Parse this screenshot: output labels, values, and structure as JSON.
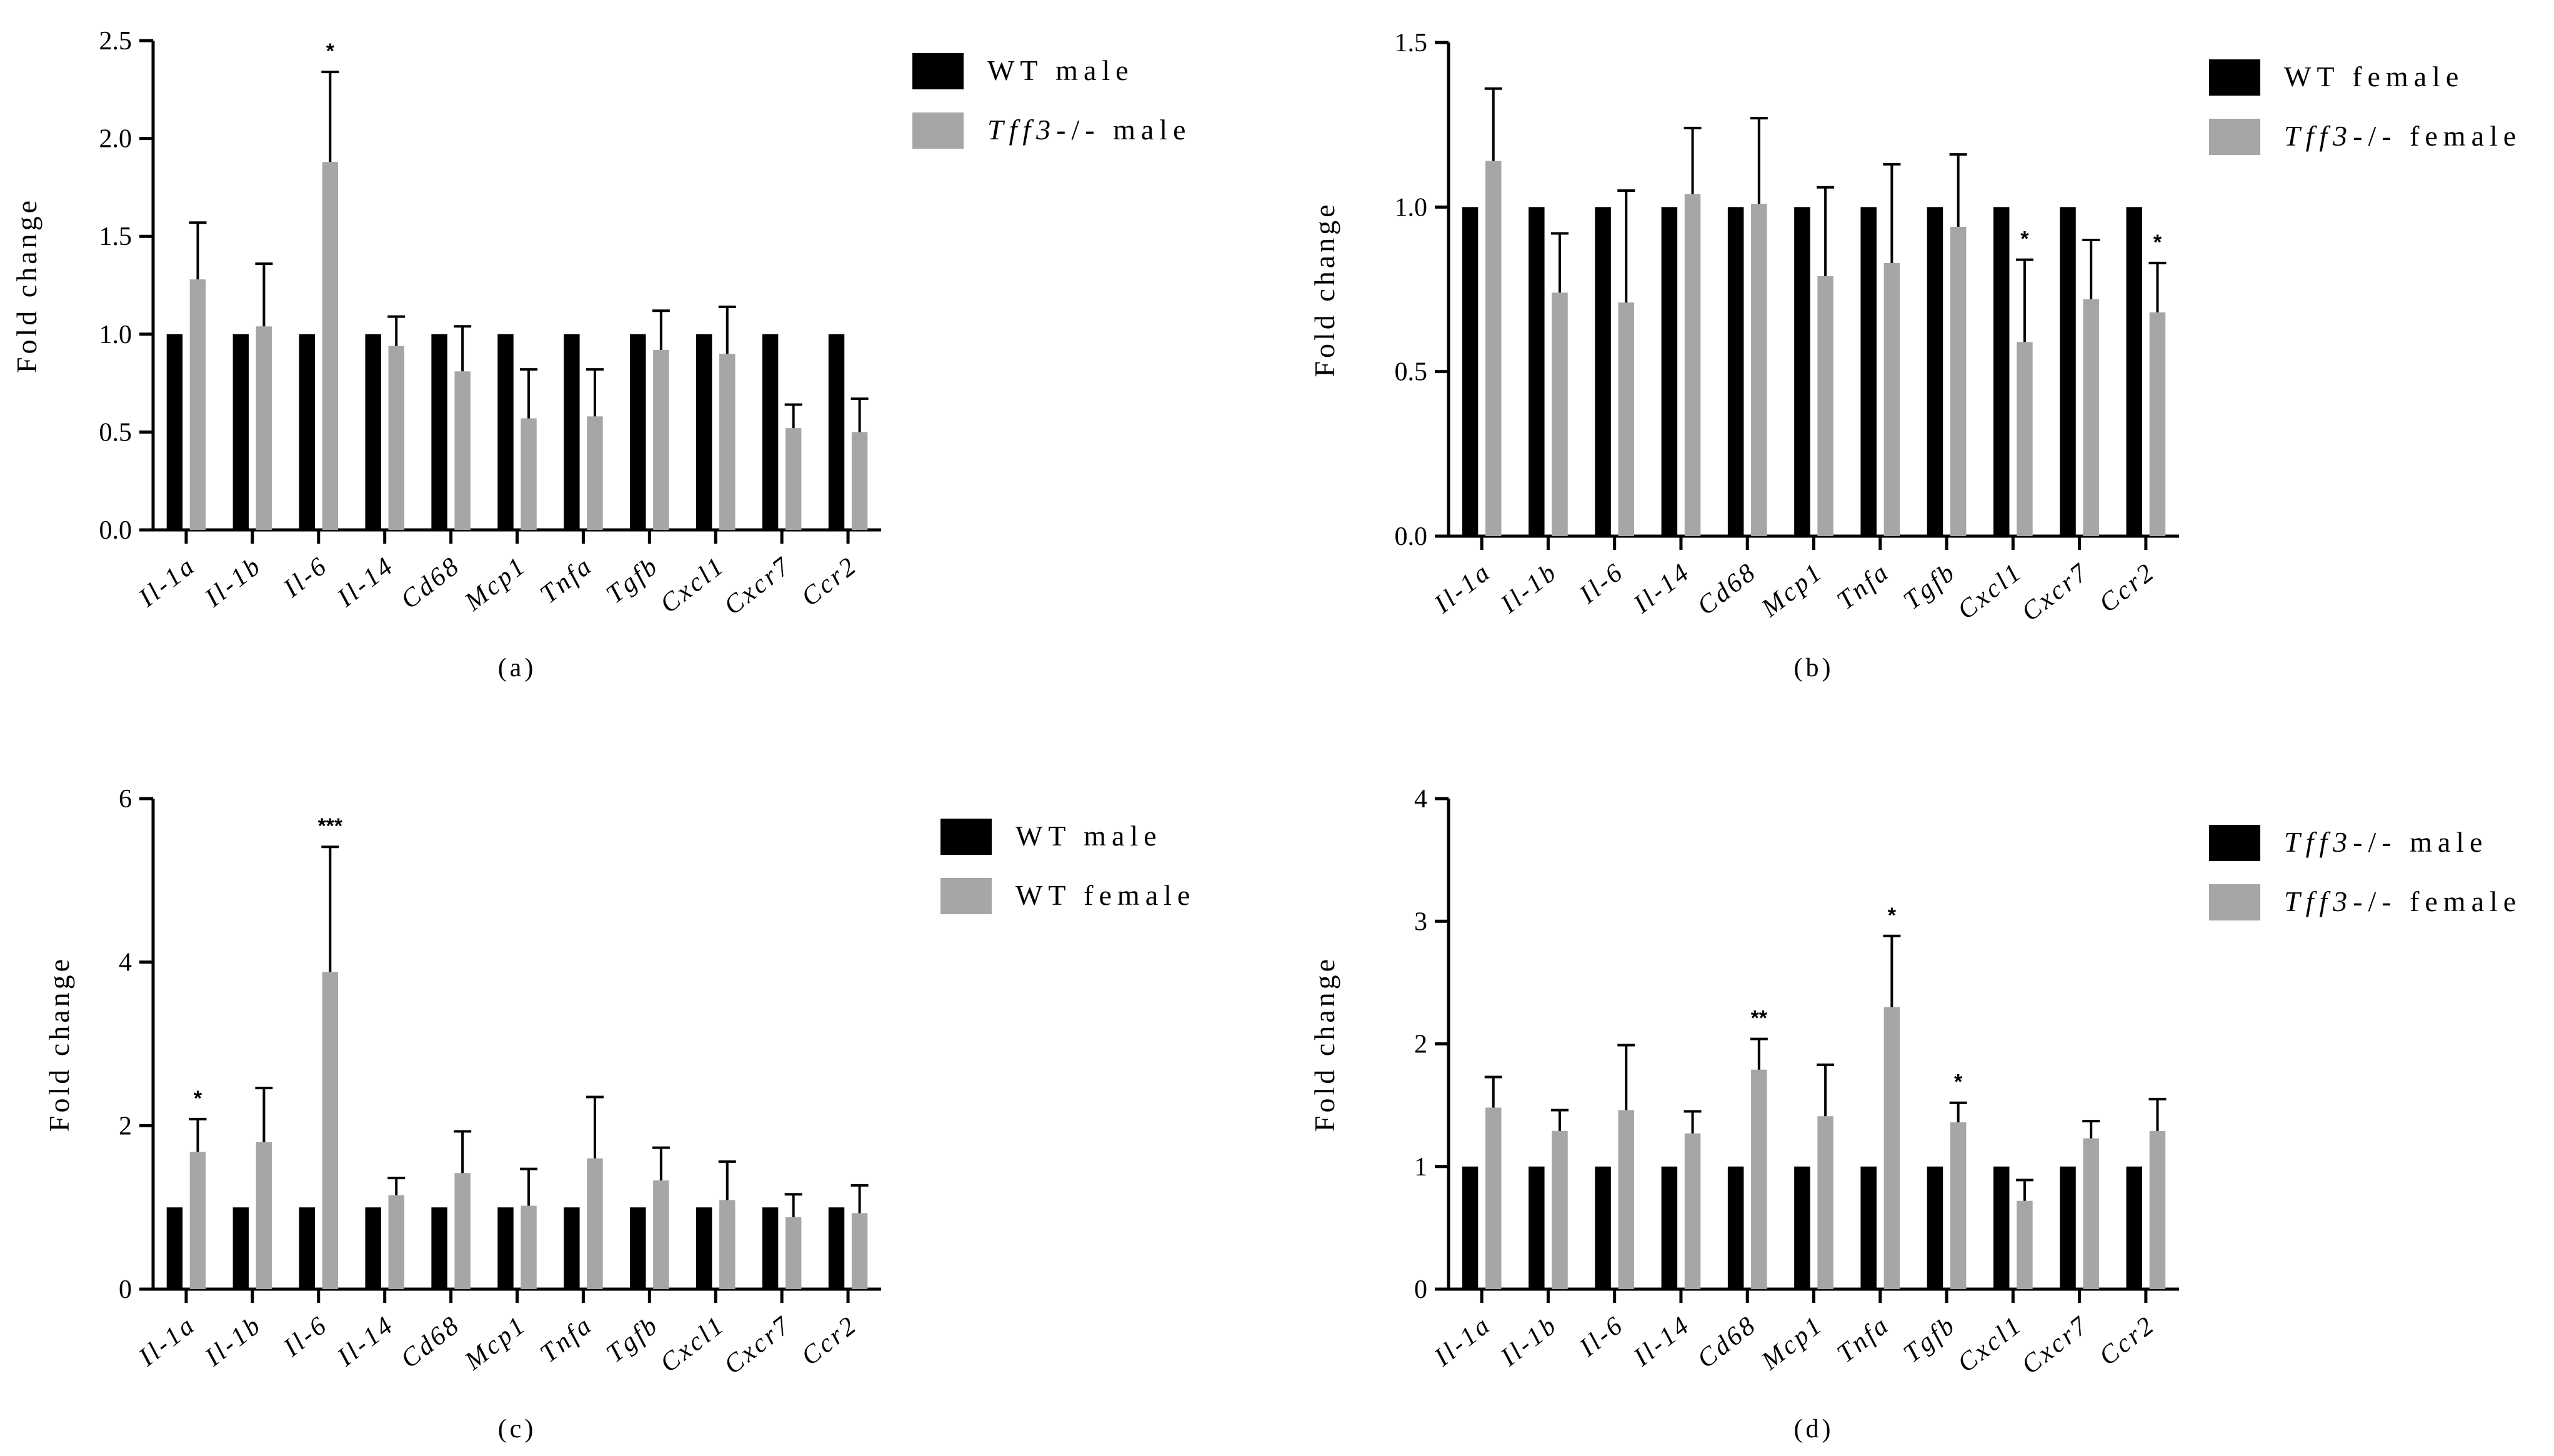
{
  "figure_colors": {
    "series_dark": "#000000",
    "series_light": "#a6a6a6",
    "axis": "#000000",
    "background": "#ffffff"
  },
  "chart_data": [
    {
      "panel": "a",
      "type": "bar",
      "panel_label": "(a)",
      "ylabel": "Fold change",
      "xlabel": "",
      "ylim": [
        0,
        2.5
      ],
      "yticks": [
        0,
        0.5,
        1.0,
        1.5,
        2.0,
        2.5
      ],
      "ytick_labels": [
        "0.0",
        "0.5",
        "1.0",
        "1.5",
        "2.0",
        "2.5"
      ],
      "categories": [
        "Il-1a",
        "Il-1b",
        "Il-6",
        "Il-14",
        "Cd68",
        "Mcp1",
        "Tnfa",
        "Tgfb",
        "Cxcl1",
        "Cxcr7",
        "Ccr2"
      ],
      "series": [
        {
          "name": "WT male",
          "legend": [
            {
              "t": "WT male",
              "i": false
            }
          ],
          "color": "#000000",
          "values": [
            1,
            1,
            1,
            1,
            1,
            1,
            1,
            1,
            1,
            1,
            1
          ],
          "errors": [
            0,
            0,
            0,
            0,
            0,
            0,
            0,
            0,
            0,
            0,
            0
          ]
        },
        {
          "name": "Tff3-/- male",
          "legend": [
            {
              "t": "Tff3",
              "i": true
            },
            {
              "t": "-/- male",
              "i": false
            }
          ],
          "color": "#a6a6a6",
          "values": [
            1.28,
            1.04,
            1.88,
            0.94,
            0.81,
            0.57,
            0.58,
            0.92,
            0.9,
            0.52,
            0.5
          ],
          "errors": [
            0.29,
            0.32,
            0.46,
            0.15,
            0.23,
            0.25,
            0.24,
            0.2,
            0.24,
            0.12,
            0.17
          ]
        }
      ],
      "significance": [
        {
          "category": "Il-6",
          "series": 1,
          "label": "*"
        }
      ],
      "legend_position": "top-right, outside plot"
    },
    {
      "panel": "b",
      "type": "bar",
      "panel_label": "(b)",
      "ylabel": "Fold change",
      "xlabel": "",
      "ylim": [
        0,
        1.5
      ],
      "yticks": [
        0,
        0.5,
        1.0,
        1.5
      ],
      "ytick_labels": [
        "0.0",
        "0.5",
        "1.0",
        "1.5"
      ],
      "categories": [
        "Il-1a",
        "Il-1b",
        "Il-6",
        "Il-14",
        "Cd68",
        "Mcp1",
        "Tnfa",
        "Tgfb",
        "Cxcl1",
        "Cxcr7",
        "Ccr2"
      ],
      "series": [
        {
          "name": "WT female",
          "legend": [
            {
              "t": "WT female",
              "i": false
            }
          ],
          "color": "#000000",
          "values": [
            1,
            1,
            1,
            1,
            1,
            1,
            1,
            1,
            1,
            1,
            1
          ],
          "errors": [
            0,
            0,
            0,
            0,
            0,
            0,
            0,
            0,
            0,
            0,
            0
          ]
        },
        {
          "name": "Tff3-/- female",
          "legend": [
            {
              "t": "Tff3",
              "i": true
            },
            {
              "t": "-/- female",
              "i": false
            }
          ],
          "color": "#a6a6a6",
          "values": [
            1.14,
            0.74,
            0.71,
            1.04,
            1.01,
            0.79,
            0.83,
            0.94,
            0.59,
            0.72,
            0.68
          ],
          "errors": [
            0.22,
            0.18,
            0.34,
            0.2,
            0.26,
            0.27,
            0.3,
            0.22,
            0.25,
            0.18,
            0.15
          ]
        }
      ],
      "significance": [
        {
          "category": "Cxcl1",
          "series": 1,
          "label": "*"
        },
        {
          "category": "Ccr2",
          "series": 1,
          "label": "*"
        }
      ],
      "legend_position": "top-right, outside plot"
    },
    {
      "panel": "c",
      "type": "bar",
      "panel_label": "(c)",
      "ylabel": "Fold change",
      "xlabel": "",
      "ylim": [
        0,
        6
      ],
      "yticks": [
        0,
        2,
        4,
        6
      ],
      "ytick_labels": [
        "0",
        "2",
        "4",
        "6"
      ],
      "categories": [
        "Il-1a",
        "Il-1b",
        "Il-6",
        "Il-14",
        "Cd68",
        "Mcp1",
        "Tnfa",
        "Tgfb",
        "Cxcl1",
        "Cxcr7",
        "Ccr2"
      ],
      "series": [
        {
          "name": "WT male",
          "legend": [
            {
              "t": "WT male",
              "i": false
            }
          ],
          "color": "#000000",
          "values": [
            1,
            1,
            1,
            1,
            1,
            1,
            1,
            1,
            1,
            1,
            1
          ],
          "errors": [
            0,
            0,
            0,
            0,
            0,
            0,
            0,
            0,
            0,
            0,
            0
          ]
        },
        {
          "name": "WT female",
          "legend": [
            {
              "t": "WT female",
              "i": false
            }
          ],
          "color": "#a6a6a6",
          "values": [
            1.68,
            1.8,
            3.88,
            1.15,
            1.42,
            1.02,
            1.6,
            1.33,
            1.09,
            0.88,
            0.93
          ],
          "errors": [
            0.4,
            0.66,
            1.53,
            0.21,
            0.51,
            0.45,
            0.75,
            0.4,
            0.47,
            0.28,
            0.34
          ]
        }
      ],
      "significance": [
        {
          "category": "Il-1a",
          "series": 1,
          "label": "*"
        },
        {
          "category": "Il-6",
          "series": 1,
          "label": "***"
        }
      ],
      "legend_position": "top-right, outside plot"
    },
    {
      "panel": "d",
      "type": "bar",
      "panel_label": "(d)",
      "ylabel": "Fold change",
      "xlabel": "",
      "ylim": [
        0,
        4
      ],
      "yticks": [
        0,
        1,
        2,
        3,
        4
      ],
      "ytick_labels": [
        "0",
        "1",
        "2",
        "3",
        "4"
      ],
      "categories": [
        "Il-1a",
        "Il-1b",
        "Il-6",
        "Il-14",
        "Cd68",
        "Mcp1",
        "Tnfa",
        "Tgfb",
        "Cxcl1",
        "Cxcr7",
        "Ccr2"
      ],
      "series": [
        {
          "name": "Tff3-/- male",
          "legend": [
            {
              "t": "Tff3",
              "i": true
            },
            {
              "t": "-/- male",
              "i": false
            }
          ],
          "color": "#000000",
          "values": [
            1,
            1,
            1,
            1,
            1,
            1,
            1,
            1,
            1,
            1,
            1
          ],
          "errors": [
            0,
            0,
            0,
            0,
            0,
            0,
            0,
            0,
            0,
            0,
            0
          ]
        },
        {
          "name": "Tff3-/- female",
          "legend": [
            {
              "t": "Tff3",
              "i": true
            },
            {
              "t": "-/- female",
              "i": false
            }
          ],
          "color": "#a6a6a6",
          "values": [
            1.48,
            1.29,
            1.46,
            1.27,
            1.79,
            1.41,
            2.3,
            1.36,
            0.72,
            1.23,
            1.29
          ],
          "errors": [
            0.25,
            0.17,
            0.53,
            0.18,
            0.25,
            0.42,
            0.58,
            0.16,
            0.17,
            0.14,
            0.26
          ]
        }
      ],
      "significance": [
        {
          "category": "Cd68",
          "series": 1,
          "label": "**"
        },
        {
          "category": "Tnfa",
          "series": 1,
          "label": "*"
        },
        {
          "category": "Tgfb",
          "series": 1,
          "label": "*"
        }
      ],
      "legend_position": "top-right, outside plot"
    }
  ]
}
